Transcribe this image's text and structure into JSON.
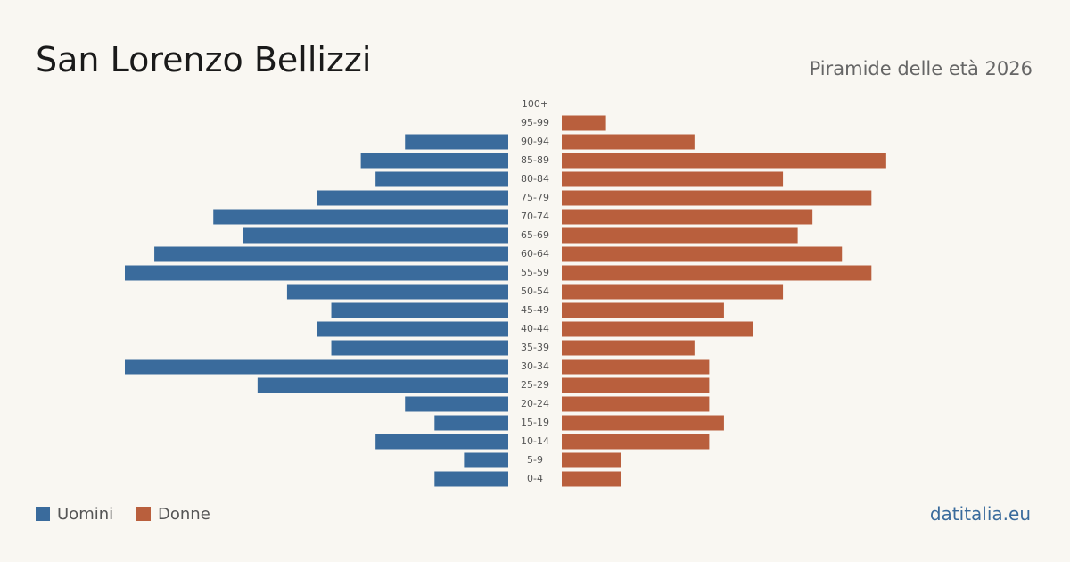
{
  "chart_data": {
    "type": "pyramid",
    "title": "San Lorenzo Bellizzi",
    "subtitle": "Piramide delle età 2026",
    "source": "datitalia.eu",
    "categories": [
      "100+",
      "95-99",
      "90-94",
      "85-89",
      "80-84",
      "75-79",
      "70-74",
      "65-69",
      "60-64",
      "55-59",
      "50-54",
      "45-49",
      "40-44",
      "35-39",
      "30-34",
      "25-29",
      "20-24",
      "15-19",
      "10-14",
      "5-9",
      "0-4"
    ],
    "series": [
      {
        "name": "Uomini",
        "color": "#3a6b9c",
        "side": "left",
        "values": [
          0,
          0,
          7,
          10,
          9,
          13,
          20,
          18,
          24,
          26,
          15,
          12,
          13,
          12,
          26,
          17,
          7,
          5,
          9,
          3,
          5
        ]
      },
      {
        "name": "Donne",
        "color": "#b95f3d",
        "side": "right",
        "values": [
          0,
          3,
          9,
          22,
          15,
          21,
          17,
          16,
          19,
          21,
          15,
          11,
          13,
          9,
          10,
          10,
          10,
          11,
          10,
          4,
          4
        ]
      }
    ]
  }
}
